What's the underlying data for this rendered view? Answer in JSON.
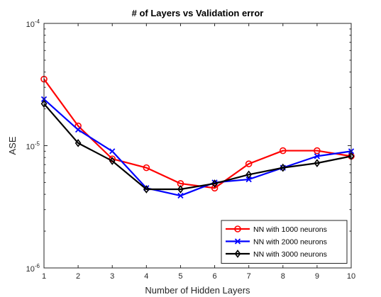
{
  "chart_data": {
    "type": "line",
    "title": "# of Layers vs Validation error",
    "xlabel": "Number of Hidden Layers",
    "ylabel": "ASE",
    "x": [
      1,
      2,
      3,
      4,
      5,
      6,
      7,
      8,
      9,
      10
    ],
    "xlim": [
      1,
      10
    ],
    "ylim": [
      1e-06,
      0.0001
    ],
    "yscale": "log",
    "x_ticks": [
      "1",
      "2",
      "3",
      "4",
      "5",
      "6",
      "7",
      "8",
      "9",
      "10"
    ],
    "y_ticks": [
      {
        "value": 1e-06,
        "base": "10",
        "exp": "-6"
      },
      {
        "value": 1e-05,
        "base": "10",
        "exp": "-5"
      },
      {
        "value": 0.0001,
        "base": "10",
        "exp": "-4"
      }
    ],
    "grid": false,
    "legend_position": "bottom-right",
    "series": [
      {
        "name": "NN with 1000 neurons",
        "color": "#ff0000",
        "marker": "circle",
        "values": [
          3.5e-05,
          1.45e-05,
          7.8e-06,
          6.6e-06,
          4.9e-06,
          4.5e-06,
          7.1e-06,
          9.1e-06,
          9.1e-06,
          8.2e-06
        ]
      },
      {
        "name": "NN with 2000 neurons",
        "color": "#0000ff",
        "marker": "x",
        "values": [
          2.4e-05,
          1.35e-05,
          9e-06,
          4.5e-06,
          3.9e-06,
          5e-06,
          5.3e-06,
          6.6e-06,
          8.2e-06,
          9e-06
        ]
      },
      {
        "name": "NN with 3000 neurons",
        "color": "#000000",
        "marker": "diamond",
        "values": [
          2.2e-05,
          1.05e-05,
          7.5e-06,
          4.4e-06,
          4.4e-06,
          4.9e-06,
          5.8e-06,
          6.6e-06,
          7.2e-06,
          8.2e-06
        ]
      }
    ]
  }
}
